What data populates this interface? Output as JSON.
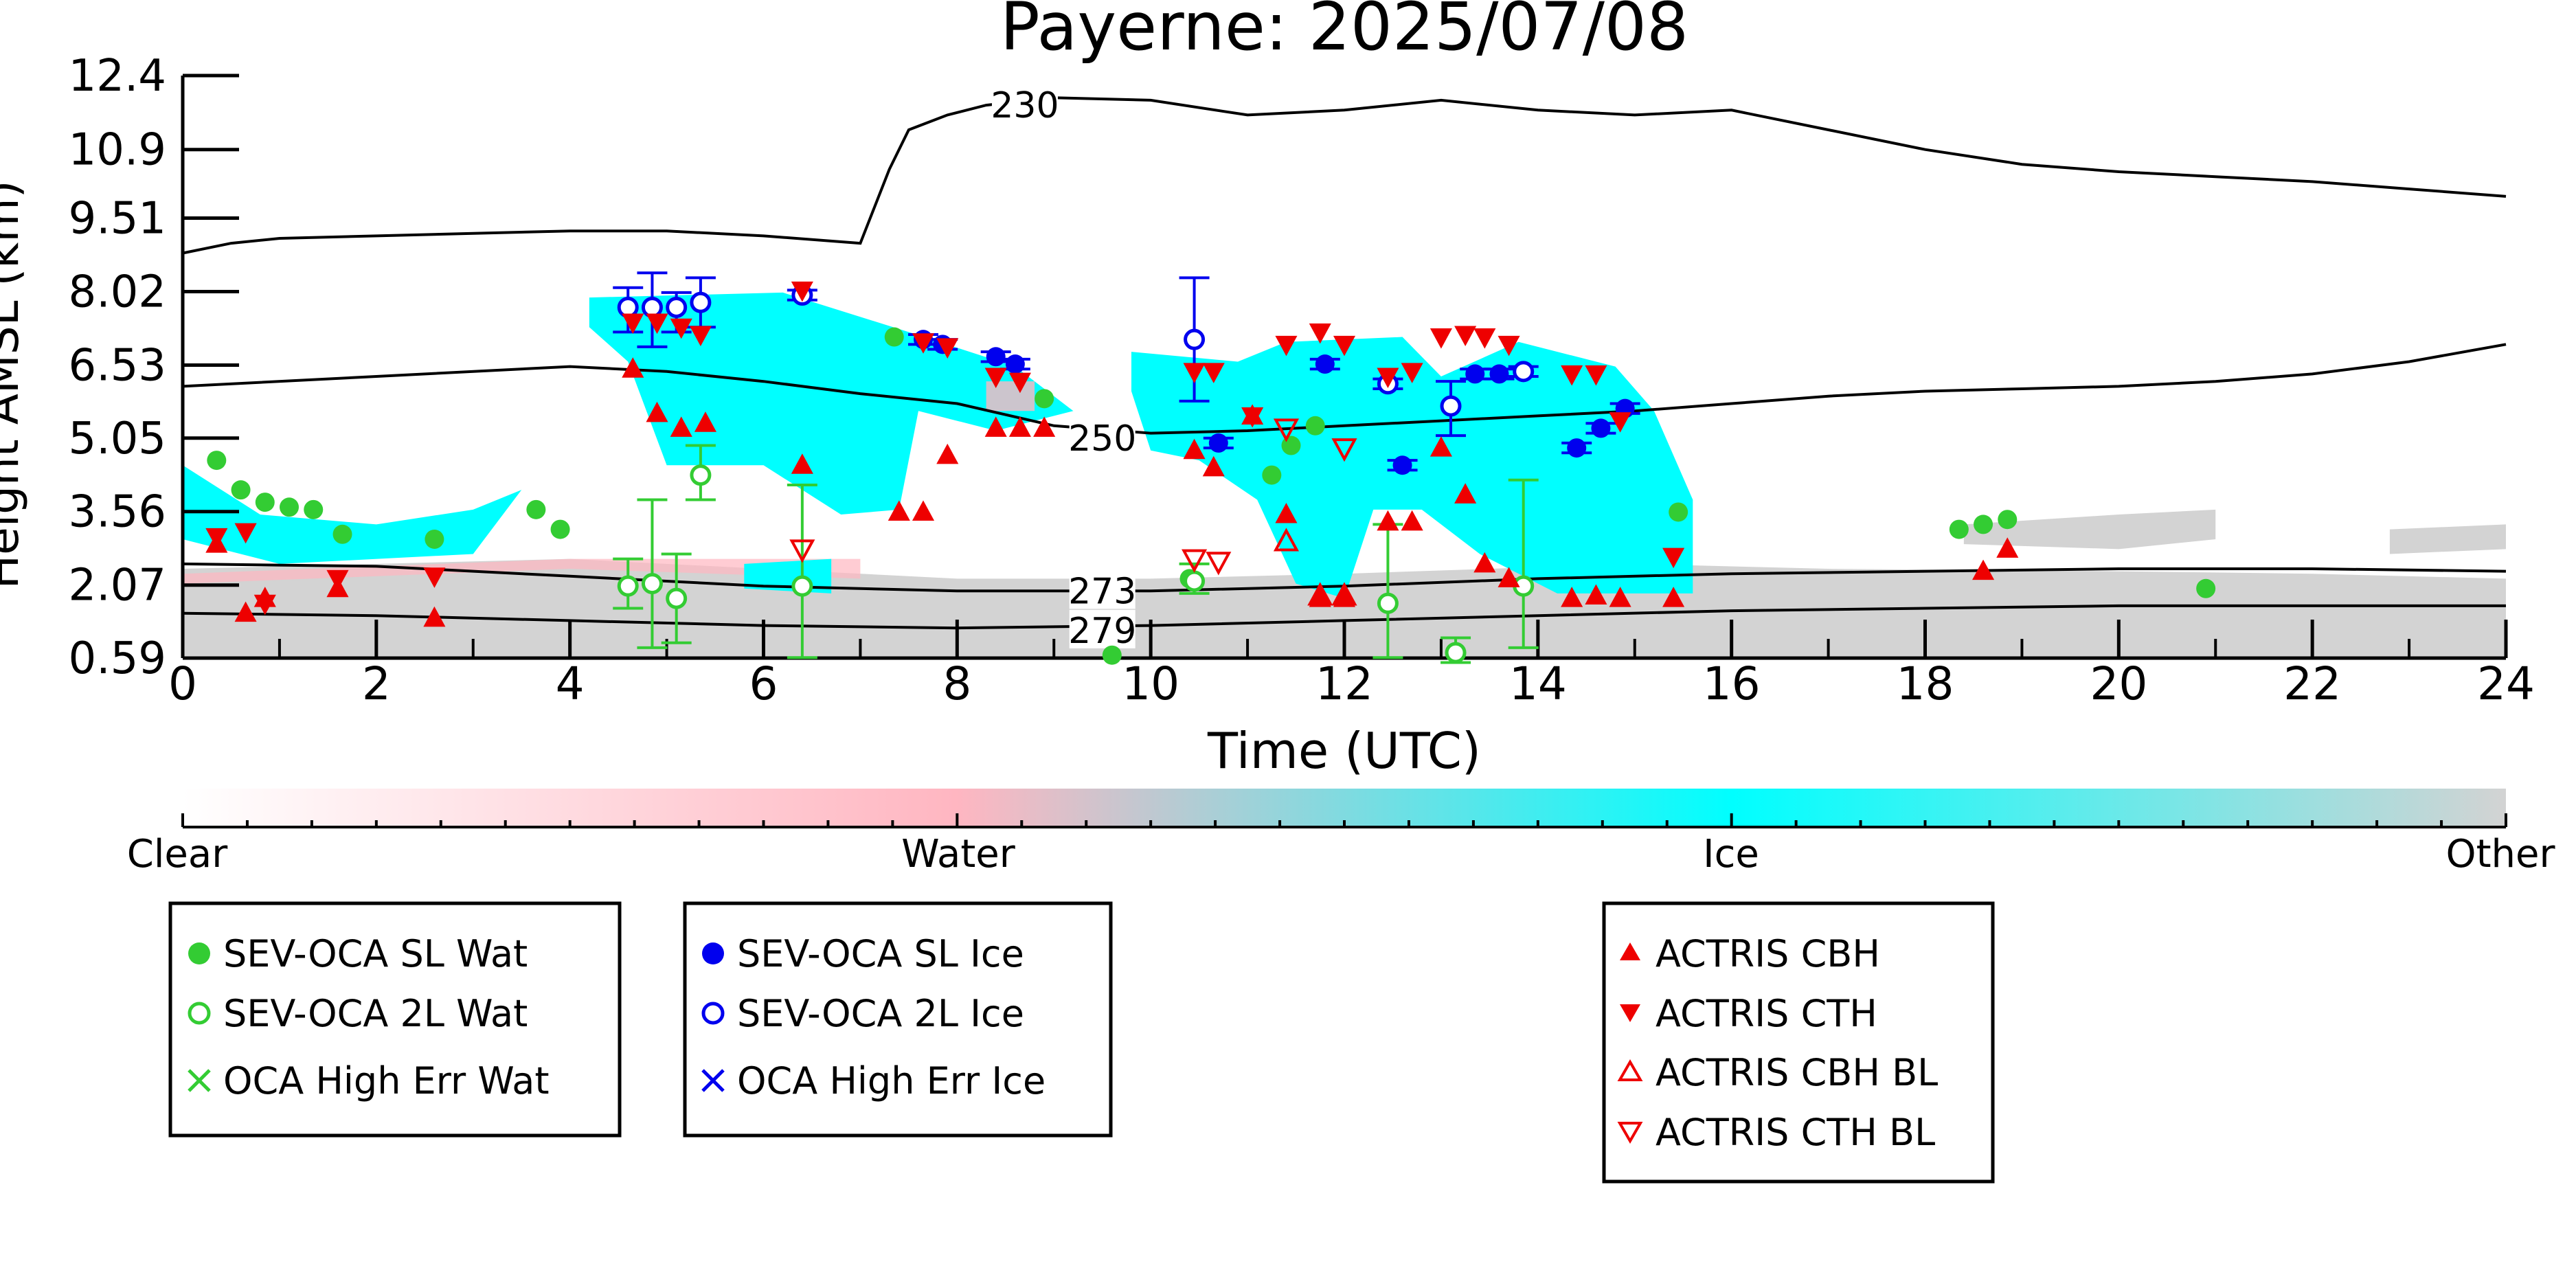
{
  "chart_data": {
    "type": "scatter",
    "title": "Payerne: 2025/07/08",
    "xlabel": "Time (UTC)",
    "ylabel": "Height AMSL (km)",
    "xlim": [
      0,
      24
    ],
    "ylim": [
      0.59,
      12.4
    ],
    "x_ticks": [
      0,
      2,
      4,
      6,
      8,
      10,
      12,
      14,
      16,
      18,
      20,
      22,
      24
    ],
    "x_tick_labels": [
      "0",
      "2",
      "4",
      "6",
      "8",
      "10",
      "12",
      "14",
      "16",
      "18",
      "20",
      "22",
      "24"
    ],
    "y_ticks": [
      0.59,
      2.07,
      3.56,
      5.05,
      6.53,
      8.02,
      9.51,
      10.9,
      12.4
    ],
    "y_tick_labels": [
      "0.59",
      "2.07",
      "3.56",
      "5.05",
      "6.53",
      "8.02",
      "9.51",
      "10.9",
      "12.4"
    ],
    "grid": false,
    "colorbar": {
      "labels": [
        "Clear",
        "Water",
        "Ice",
        "Other"
      ],
      "colors": [
        "#ffffff",
        "#ffb6c1",
        "#00ffff",
        "#d3d3d3"
      ]
    },
    "isotherms": [
      {
        "label": "230",
        "label_x": 8.7,
        "label_y": 11.8,
        "x": [
          0,
          0.5,
          1,
          2,
          3,
          4,
          5,
          6,
          7,
          7.1,
          7.3,
          7.5,
          7.9,
          8.3,
          9.0,
          10.0,
          11.0,
          12.0,
          13.0,
          14.0,
          15.0,
          16.0,
          17.0,
          18.0,
          19.0,
          20.0,
          21.0,
          22.0,
          23.0,
          24.0
        ],
        "y": [
          8.8,
          9.0,
          9.1,
          9.15,
          9.2,
          9.25,
          9.25,
          9.15,
          9.0,
          9.5,
          10.5,
          11.3,
          11.6,
          11.8,
          11.95,
          11.9,
          11.6,
          11.7,
          11.9,
          11.7,
          11.6,
          11.7,
          11.3,
          10.9,
          10.6,
          10.45,
          10.35,
          10.25,
          10.1,
          9.95
        ]
      },
      {
        "label": "250",
        "label_x": 9.5,
        "label_y": 5.05,
        "x": [
          0,
          2,
          4,
          5,
          6,
          7,
          8,
          9,
          10,
          11,
          12,
          13,
          14,
          15,
          16,
          17,
          18,
          19,
          20,
          21,
          22,
          23,
          24
        ],
        "y": [
          6.1,
          6.3,
          6.5,
          6.4,
          6.2,
          5.95,
          5.75,
          5.3,
          5.15,
          5.2,
          5.3,
          5.4,
          5.5,
          5.6,
          5.75,
          5.9,
          6.0,
          6.05,
          6.1,
          6.2,
          6.35,
          6.6,
          6.95
        ]
      },
      {
        "label": "273",
        "label_x": 9.5,
        "label_y": 1.95,
        "x": [
          0,
          2,
          4,
          6,
          8,
          10,
          12,
          14,
          16,
          18,
          20,
          22,
          24
        ],
        "y": [
          2.5,
          2.45,
          2.25,
          2.05,
          1.95,
          1.95,
          2.05,
          2.2,
          2.3,
          2.35,
          2.4,
          2.4,
          2.35
        ]
      },
      {
        "label": "279",
        "label_x": 9.5,
        "label_y": 1.15,
        "x": [
          0,
          2,
          4,
          6,
          8,
          10,
          12,
          14,
          16,
          18,
          20,
          22,
          24
        ],
        "y": [
          1.5,
          1.45,
          1.35,
          1.25,
          1.2,
          1.25,
          1.35,
          1.45,
          1.55,
          1.6,
          1.65,
          1.65,
          1.65
        ]
      }
    ],
    "series": [
      {
        "name": "SEV-OCA SL Wat",
        "marker": "filled-circle",
        "color": "#33cc33",
        "x": [
          0.35,
          0.6,
          0.85,
          1.1,
          1.35,
          1.65,
          2.6,
          3.65,
          3.9,
          7.35,
          8.9,
          10.4,
          11.25,
          11.45,
          11.7,
          15.45,
          18.35,
          18.6,
          18.85,
          20.9,
          9.6
        ],
        "y": [
          4.6,
          4.0,
          3.75,
          3.65,
          3.6,
          3.1,
          3.0,
          3.6,
          3.2,
          7.1,
          5.85,
          2.2,
          4.3,
          4.9,
          5.3,
          3.55,
          3.2,
          3.3,
          3.4,
          2.0,
          0.65
        ]
      },
      {
        "name": "SEV-OCA 2L Wat",
        "marker": "open-circle",
        "color": "#33cc33",
        "x": [
          4.6,
          4.85,
          5.1,
          5.35,
          6.4,
          10.45,
          12.45,
          13.15,
          13.85
        ],
        "y": [
          2.05,
          2.1,
          1.8,
          4.3,
          2.05,
          2.15,
          1.7,
          0.7,
          2.05
        ],
        "err_low": [
          1.6,
          0.8,
          0.9,
          3.8,
          0.6,
          1.9,
          0.6,
          0.5,
          0.8
        ],
        "err_high": [
          2.6,
          3.8,
          2.7,
          4.9,
          4.1,
          2.5,
          3.3,
          1.0,
          4.2
        ]
      },
      {
        "name": "OCA High Err Wat",
        "marker": "x",
        "color": "#33cc33",
        "x": [],
        "y": []
      },
      {
        "name": "SEV-OCA SL Ice",
        "marker": "filled-circle",
        "color": "#0000ee",
        "x": [
          7.65,
          7.85,
          8.4,
          8.6,
          10.7,
          11.8,
          12.6,
          13.35,
          13.6,
          14.4,
          14.65,
          14.9
        ],
        "y": [
          7.05,
          6.95,
          6.7,
          6.55,
          4.95,
          6.55,
          4.5,
          6.35,
          6.35,
          4.85,
          5.25,
          5.65
        ],
        "err_low": [
          6.95,
          6.85,
          6.6,
          6.45,
          4.85,
          6.45,
          4.4,
          6.25,
          6.25,
          4.75,
          5.15,
          5.55
        ],
        "err_high": [
          7.15,
          7.05,
          6.8,
          6.65,
          5.05,
          6.65,
          4.6,
          6.45,
          6.45,
          4.95,
          5.35,
          5.75
        ]
      },
      {
        "name": "SEV-OCA 2L Ice",
        "marker": "open-circle",
        "color": "#0000ee",
        "x": [
          4.6,
          4.85,
          5.1,
          5.35,
          6.4,
          10.45,
          12.45,
          13.1,
          13.85
        ],
        "y": [
          7.7,
          7.7,
          7.7,
          7.8,
          7.95,
          7.05,
          6.15,
          5.7,
          6.4
        ],
        "err_low": [
          7.2,
          6.9,
          7.2,
          7.3,
          7.85,
          5.8,
          6.05,
          5.1,
          6.3
        ],
        "err_high": [
          8.1,
          8.4,
          8.0,
          8.3,
          8.05,
          8.3,
          6.25,
          6.2,
          6.5
        ]
      },
      {
        "name": "OCA High Err Ice",
        "marker": "x",
        "color": "#0000ee",
        "x": [],
        "y": []
      },
      {
        "name": "ACTRIS CBH",
        "marker": "filled-triangle-up",
        "color": "#ee0000",
        "x": [
          0.35,
          0.65,
          0.85,
          1.6,
          2.6,
          4.65,
          4.9,
          5.15,
          5.4,
          6.4,
          7.4,
          7.65,
          7.9,
          8.4,
          8.65,
          8.9,
          10.45,
          10.65,
          11.05,
          11.4,
          11.75,
          12.0,
          12.45,
          12.7,
          13.0,
          13.25,
          13.45,
          13.7,
          14.35,
          14.6,
          14.85,
          15.4,
          18.6,
          18.85
        ],
        "y": [
          2.9,
          1.5,
          1.8,
          2.0,
          1.4,
          6.45,
          5.55,
          5.25,
          5.35,
          4.5,
          3.55,
          3.55,
          4.7,
          5.25,
          5.25,
          5.25,
          4.8,
          4.45,
          5.5,
          3.5,
          1.8,
          1.8,
          3.35,
          3.35,
          4.85,
          3.9,
          2.5,
          2.2,
          1.8,
          1.85,
          1.8,
          1.8,
          2.35,
          2.8
        ]
      },
      {
        "name": "ACTRIS CTH",
        "marker": "filled-triangle-down",
        "color": "#ee0000",
        "x": [
          0.35,
          0.65,
          0.85,
          1.6,
          2.6,
          4.65,
          4.9,
          5.15,
          5.35,
          6.4,
          7.65,
          7.9,
          8.4,
          8.65,
          10.45,
          10.65,
          11.05,
          11.4,
          11.75,
          12.0,
          12.45,
          12.7,
          13.0,
          13.25,
          13.45,
          13.7,
          14.35,
          14.6,
          14.85,
          15.4
        ],
        "y": [
          3.05,
          3.15,
          1.7,
          2.2,
          2.25,
          7.4,
          7.4,
          7.3,
          7.15,
          8.05,
          7.0,
          6.9,
          6.3,
          6.2,
          6.4,
          6.4,
          5.5,
          6.95,
          7.2,
          6.95,
          6.3,
          6.4,
          7.1,
          7.15,
          7.1,
          6.95,
          6.35,
          6.35,
          5.4,
          2.65
        ]
      },
      {
        "name": "ACTRIS CBH BL",
        "marker": "open-triangle-up",
        "color": "#ee0000",
        "x": [
          11.4,
          11.75,
          12.0
        ],
        "y": [
          2.95,
          1.85,
          1.85
        ]
      },
      {
        "name": "ACTRIS CTH BL",
        "marker": "open-triangle-down",
        "color": "#ee0000",
        "x": [
          6.4,
          10.45,
          10.7,
          11.4,
          12.0
        ],
        "y": [
          2.8,
          2.6,
          2.55,
          5.25,
          4.85
        ]
      }
    ]
  },
  "legend_boxes": [
    {
      "entries": [
        "SEV-OCA SL Wat",
        "SEV-OCA 2L Wat",
        "OCA High Err Wat"
      ]
    },
    {
      "entries": [
        "SEV-OCA SL Ice",
        "SEV-OCA 2L Ice",
        "OCA High Err Ice"
      ]
    },
    {
      "entries": [
        "ACTRIS CBH",
        "ACTRIS CTH",
        "ACTRIS CBH BL",
        "ACTRIS CTH BL"
      ]
    }
  ]
}
